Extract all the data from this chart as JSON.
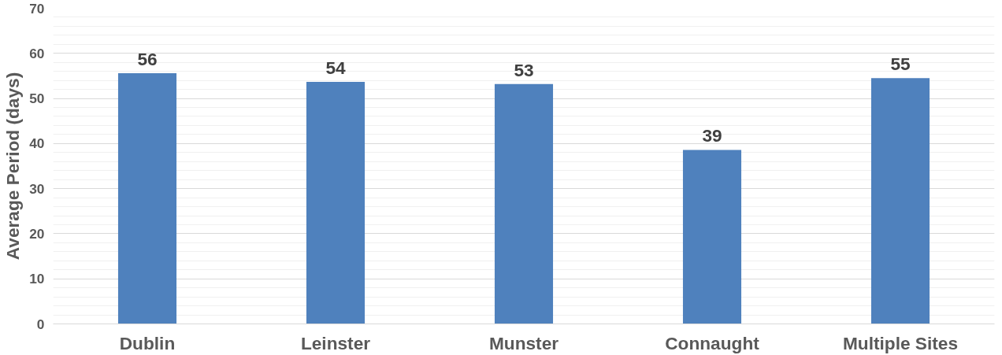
{
  "chart_data": {
    "type": "bar",
    "ylabel": "Average Period (days)",
    "categories": [
      "Dublin",
      "Leinster",
      "Munster",
      "Connaught",
      "Multiple Sites"
    ],
    "values": [
      55.6,
      53.7,
      53.2,
      38.6,
      54.5
    ],
    "value_labels": [
      "56",
      "54",
      "53",
      "39",
      "55"
    ],
    "color": "#4f81bd",
    "ylim": [
      0,
      70
    ],
    "yticks": [
      0,
      10,
      20,
      30,
      40,
      50,
      60,
      70
    ],
    "grid": "y"
  }
}
